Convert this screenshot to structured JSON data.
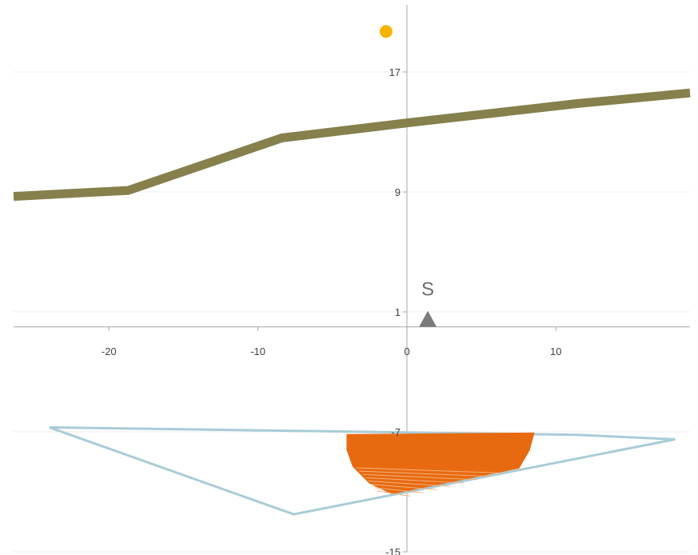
{
  "chart_data": {
    "type": "scatter",
    "xlim": [
      -26.4,
      19
    ],
    "ylim": [
      -15,
      21.8
    ],
    "grid": {
      "horizontal": true,
      "vertical": false
    },
    "x_ticks": [
      -20,
      -10,
      0,
      10
    ],
    "y_ticks": [
      17,
      9,
      1,
      -7,
      -15
    ],
    "tick_labels_x": [
      "-20",
      "-10",
      "0",
      "10"
    ],
    "tick_labels_y": [
      "17",
      "9",
      "1",
      "-7",
      "-15"
    ],
    "colors": {
      "line": "#86804d",
      "point": "#f5b400",
      "polygon": "#a9ccd8",
      "fill": "#e86a10",
      "marker": "#7a7a7a"
    },
    "series": [
      {
        "type": "line",
        "points": [
          [
            -26.4,
            8.7
          ],
          [
            -18.7,
            9.1
          ],
          [
            -8.4,
            12.6
          ],
          [
            0,
            13.6
          ],
          [
            11.5,
            14.9
          ],
          [
            19,
            15.6
          ]
        ]
      },
      {
        "type": "scatter",
        "points": [
          [
            -1.4,
            19.7
          ]
        ]
      },
      {
        "type": "polygon",
        "points": [
          [
            -24,
            -6.7
          ],
          [
            -7.6,
            -12.5
          ],
          [
            18,
            -7.5
          ],
          [
            11.5,
            -7.2
          ],
          [
            -24,
            -6.7
          ]
        ]
      },
      {
        "type": "area",
        "points": [
          [
            -4,
            -7.2
          ],
          [
            8.5,
            -7.1
          ],
          [
            8.2,
            -8.2
          ],
          [
            7.5,
            -9.4
          ],
          [
            -1,
            -11.1
          ],
          [
            -2.5,
            -10.4
          ],
          [
            -3.6,
            -9.3
          ],
          [
            -4,
            -8.2
          ]
        ]
      },
      {
        "type": "marker",
        "marker": "triangle",
        "points": [
          [
            1.4,
            0
          ]
        ]
      }
    ],
    "annotations": [
      {
        "text": "S",
        "x": 1.4,
        "y": 2.1
      }
    ]
  }
}
